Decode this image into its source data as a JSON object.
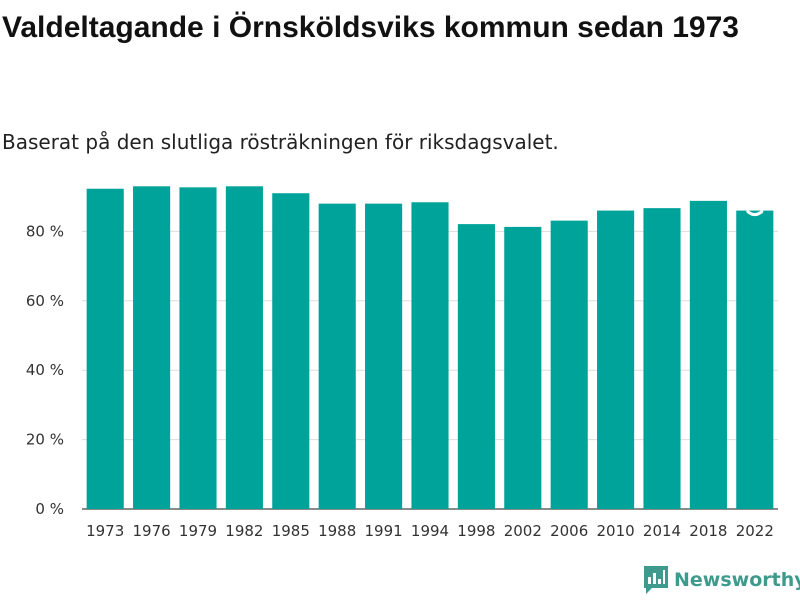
{
  "chart_data": {
    "type": "bar",
    "title": "Valdeltagande i Örnsköldsviks kommun sedan 1973",
    "subtitle": "Baserat på den slutliga rösträkningen för riksdagsvalet.",
    "categories": [
      "1973",
      "1976",
      "1979",
      "1982",
      "1985",
      "1988",
      "1991",
      "1994",
      "1998",
      "2002",
      "2006",
      "2010",
      "2014",
      "2018",
      "2022"
    ],
    "values": [
      92.3,
      93.0,
      92.7,
      93.0,
      91.0,
      88.0,
      88.0,
      88.4,
      82.1,
      81.3,
      83.1,
      86.0,
      86.7,
      88.8,
      86.0
    ],
    "ylim": [
      0,
      100
    ],
    "yticks": [
      0,
      20,
      40,
      60,
      80
    ],
    "ytick_labels": [
      "0 %",
      "20 %",
      "40 %",
      "60 %",
      "80 %"
    ],
    "xlabel": "",
    "ylabel": "",
    "grid": true,
    "bar_color": "#00a39a",
    "preliminary_marker_on": "2022"
  },
  "brand": {
    "name": "Newsworthy",
    "icon": "newsworthy-logo-icon",
    "color": "#3d9a8c"
  }
}
